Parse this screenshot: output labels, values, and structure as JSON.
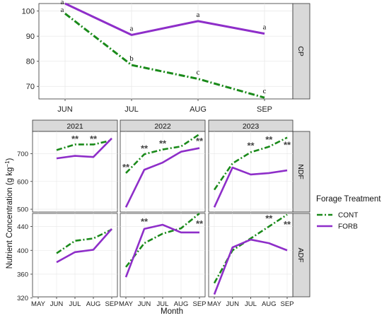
{
  "colors": {
    "CONT": "#1a8a1a",
    "FORB": "#8e2ec9",
    "strip_bg": "#d9d9d9",
    "panel_border": "#333333",
    "grid": "#e6e6e6"
  },
  "legend": {
    "title": "Forage Treatment",
    "position": "right",
    "entries": [
      "CONT",
      "FORB"
    ]
  },
  "chart_data": [
    {
      "type": "line",
      "strip": "CP",
      "categories": [
        "JUN",
        "JUL",
        "AUG",
        "SEP"
      ],
      "ylim": [
        65,
        103
      ],
      "yticks": [
        70,
        80,
        90,
        100
      ],
      "series": [
        {
          "name": "CONT",
          "values": [
            99,
            78.5,
            73,
            65.5
          ],
          "labels": [
            "a",
            "b",
            "c",
            "c"
          ]
        },
        {
          "name": "FORB",
          "values": [
            103,
            90.5,
            96,
            91
          ],
          "labels": [
            "a",
            "a",
            "a",
            "a"
          ]
        }
      ]
    },
    {
      "type": "line",
      "xlabel": "Month",
      "ylabel": "Nutrient Concentration (g kg",
      "ylabel_sup": "−1",
      "ylabel_close": ")",
      "categories": [
        "MAY",
        "JUN",
        "JUL",
        "AUG",
        "SEP"
      ],
      "years": [
        "2021",
        "2022",
        "2023"
      ],
      "rows": [
        {
          "strip": "NDF",
          "ylim": [
            490,
            780
          ],
          "yticks": [
            500,
            600,
            700
          ],
          "panels": [
            {
              "year": "2021",
              "series": [
                {
                  "name": "CONT",
                  "values": [
                    null,
                    713,
                    733,
                    733,
                    748
                  ]
                },
                {
                  "name": "FORB",
                  "values": [
                    null,
                    683,
                    692,
                    688,
                    755
                  ]
                }
              ],
              "stars": [
                {
                  "month": "JUL",
                  "y": 752
                },
                {
                  "month": "AUG",
                  "y": 752
                }
              ]
            },
            {
              "year": "2022",
              "series": [
                {
                  "name": "CONT",
                  "values": [
                    630,
                    698,
                    715,
                    726,
                    770
                  ]
                },
                {
                  "name": "FORB",
                  "values": [
                    507,
                    642,
                    668,
                    707,
                    720
                  ]
                }
              ],
              "stars": [
                {
                  "month": "MAY",
                  "y": 650
                },
                {
                  "month": "JUN",
                  "y": 718
                },
                {
                  "month": "JUL",
                  "y": 735
                },
                {
                  "month": "SEP",
                  "y": 744
                }
              ]
            },
            {
              "year": "2023",
              "series": [
                {
                  "name": "CONT",
                  "values": [
                    570,
                    665,
                    705,
                    725,
                    758
                  ]
                },
                {
                  "name": "FORB",
                  "values": [
                    507,
                    650,
                    625,
                    630,
                    640
                  ]
                }
              ],
              "stars": [
                {
                  "month": "JUL",
                  "y": 728
                },
                {
                  "month": "AUG",
                  "y": 750
                },
                {
                  "month": "SEP",
                  "y": 730
                }
              ]
            }
          ]
        },
        {
          "strip": "ADF",
          "ylim": [
            322,
            462
          ],
          "yticks": [
            320,
            360,
            400,
            440
          ],
          "panels": [
            {
              "year": "2021",
              "series": [
                {
                  "name": "CONT",
                  "values": [
                    null,
                    395,
                    416,
                    420,
                    435
                  ]
                },
                {
                  "name": "FORB",
                  "values": [
                    null,
                    380,
                    397,
                    401,
                    436
                  ]
                }
              ],
              "stars": []
            },
            {
              "year": "2022",
              "series": [
                {
                  "name": "CONT",
                  "values": [
                    372,
                    412,
                    428,
                    437,
                    462
                  ]
                },
                {
                  "name": "FORB",
                  "values": [
                    355,
                    436,
                    443,
                    430,
                    430
                  ]
                }
              ],
              "stars": [
                {
                  "month": "JUN",
                  "y": 448
                },
                {
                  "month": "SEP",
                  "y": 444
                }
              ]
            },
            {
              "year": "2023",
              "series": [
                {
                  "name": "CONT",
                  "values": [
                    345,
                    400,
                    420,
                    440,
                    460
                  ]
                },
                {
                  "name": "FORB",
                  "values": [
                    326,
                    405,
                    418,
                    412,
                    400
                  ]
                }
              ],
              "stars": [
                {
                  "month": "AUG",
                  "y": 453
                },
                {
                  "month": "SEP",
                  "y": 443
                }
              ]
            }
          ]
        }
      ]
    }
  ]
}
